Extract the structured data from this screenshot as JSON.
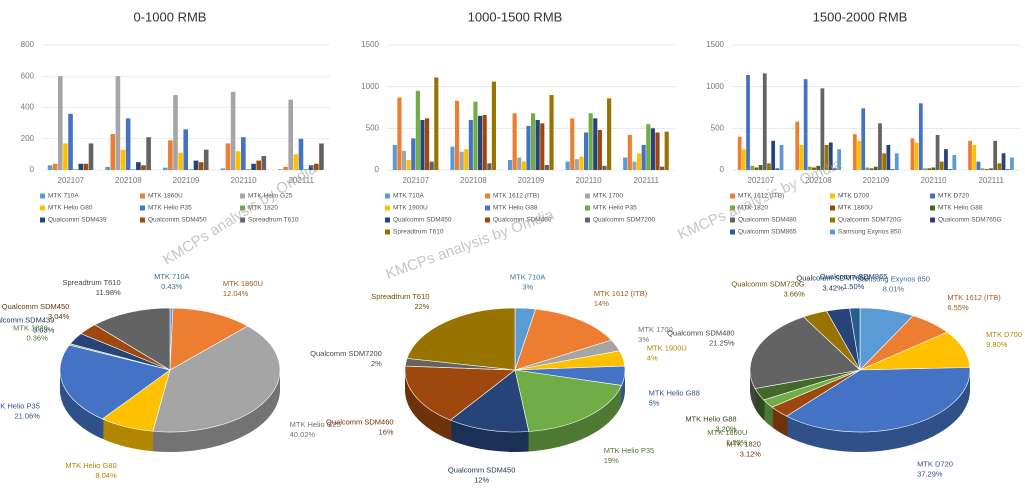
{
  "chart_data": [
    {
      "type": "bar",
      "title": "0-1000 RMB",
      "categories": [
        "202107",
        "202108",
        "202109",
        "202110",
        "202111"
      ],
      "ylim": [
        0,
        800
      ],
      "yticks": [
        0,
        200,
        400,
        600,
        800
      ],
      "grid": true,
      "series": [
        {
          "name": "MTK 710A",
          "color": "#5b9bd5",
          "values": [
            30,
            20,
            15,
            10,
            5
          ]
        },
        {
          "name": "MTK 1860U",
          "color": "#ed7d31",
          "values": [
            40,
            230,
            190,
            170,
            20
          ]
        },
        {
          "name": "MTK Helio G25",
          "color": "#a5a5a5",
          "values": [
            600,
            600,
            480,
            500,
            450
          ]
        },
        {
          "name": "MTK Helio G80",
          "color": "#ffc000",
          "values": [
            170,
            130,
            110,
            120,
            100
          ]
        },
        {
          "name": "MTK Helio P35",
          "color": "#4472c4",
          "values": [
            360,
            330,
            260,
            210,
            200
          ]
        },
        {
          "name": "MTK 1820",
          "color": "#70ad47",
          "values": [
            5,
            5,
            5,
            5,
            5
          ]
        },
        {
          "name": "Qualcomm SDM439",
          "color": "#264478",
          "values": [
            40,
            50,
            60,
            40,
            30
          ]
        },
        {
          "name": "Qualcomm SDM450",
          "color": "#9e480e",
          "values": [
            40,
            30,
            50,
            60,
            40
          ]
        },
        {
          "name": "Spreadtrum T610",
          "color": "#636363",
          "values": [
            170,
            210,
            130,
            90,
            170
          ]
        }
      ]
    },
    {
      "type": "bar",
      "title": "1000-1500 RMB",
      "categories": [
        "202107",
        "202108",
        "202109",
        "202110",
        "202111"
      ],
      "ylim": [
        0,
        1500
      ],
      "yticks": [
        0,
        500,
        1000,
        1500
      ],
      "grid": true,
      "series": [
        {
          "name": "MTK 710A",
          "color": "#5b9bd5",
          "values": [
            300,
            280,
            120,
            100,
            150
          ]
        },
        {
          "name": "MTK 1612 (ITB)",
          "color": "#ed7d31",
          "values": [
            870,
            830,
            680,
            620,
            420
          ]
        },
        {
          "name": "MTK 1700",
          "color": "#a5a5a5",
          "values": [
            230,
            220,
            150,
            130,
            100
          ]
        },
        {
          "name": "MTK 1900U",
          "color": "#ffc000",
          "values": [
            120,
            250,
            100,
            160,
            200
          ]
        },
        {
          "name": "MTK Helio G88",
          "color": "#4472c4",
          "values": [
            380,
            600,
            530,
            450,
            300
          ]
        },
        {
          "name": "MTK Helio P35",
          "color": "#70ad47",
          "values": [
            950,
            820,
            680,
            680,
            550
          ]
        },
        {
          "name": "Qualcomm SDM450",
          "color": "#264478",
          "values": [
            600,
            650,
            600,
            620,
            500
          ]
        },
        {
          "name": "Qualcomm SDM460",
          "color": "#9e480e",
          "values": [
            620,
            660,
            560,
            480,
            450
          ]
        },
        {
          "name": "Qualcomm SDM7200",
          "color": "#636363",
          "values": [
            100,
            80,
            60,
            50,
            40
          ]
        },
        {
          "name": "Spreadtrum T610",
          "color": "#997300",
          "values": [
            1110,
            1060,
            900,
            860,
            460
          ]
        }
      ]
    },
    {
      "type": "bar",
      "title": "1500-2000 RMB",
      "categories": [
        "202107",
        "202108",
        "202109",
        "202110",
        "202111"
      ],
      "ylim": [
        0,
        1500
      ],
      "yticks": [
        0,
        500,
        1000,
        1500
      ],
      "grid": true,
      "series": [
        {
          "name": "MTK 1612 (ITB)",
          "color": "#ed7d31",
          "values": [
            400,
            580,
            430,
            380,
            350
          ]
        },
        {
          "name": "MTK D700",
          "color": "#ffc000",
          "values": [
            250,
            300,
            350,
            330,
            300
          ]
        },
        {
          "name": "MTK D720",
          "color": "#4472c4",
          "values": [
            1140,
            1090,
            740,
            800,
            100
          ]
        },
        {
          "name": "MTK 1820",
          "color": "#70ad47",
          "values": [
            50,
            40,
            30,
            20,
            20
          ]
        },
        {
          "name": "MTK 1860U",
          "color": "#9e480e",
          "values": [
            30,
            30,
            20,
            20,
            10
          ]
        },
        {
          "name": "MTK Helio G88",
          "color": "#43682b",
          "values": [
            60,
            50,
            40,
            30,
            20
          ]
        },
        {
          "name": "Qualcomm SDM480",
          "color": "#636363",
          "values": [
            1160,
            980,
            560,
            420,
            350
          ]
        },
        {
          "name": "Qualcomm SDM720G",
          "color": "#997300",
          "values": [
            80,
            300,
            200,
            100,
            80
          ]
        },
        {
          "name": "Qualcomm SDM765G",
          "color": "#264478",
          "values": [
            350,
            330,
            300,
            250,
            200
          ]
        },
        {
          "name": "Qualcomm SDM865",
          "color": "#255e91",
          "values": [
            20,
            20,
            10,
            10,
            10
          ]
        },
        {
          "name": "Samsung Exynos 850",
          "color": "#5b9bd5",
          "values": [
            300,
            250,
            200,
            180,
            150
          ]
        }
      ]
    },
    {
      "type": "pie",
      "categories": [
        "MTK 710A",
        "MTK 1860U",
        "MTK Helio G25",
        "MTK Helio G80",
        "MTK Helio P35",
        "MTK 1820",
        "Qualcomm SDM439",
        "Qualcomm SDM450",
        "Spreadtrum T610"
      ],
      "values": [
        0.43,
        12.04,
        40.02,
        8.04,
        21.06,
        0.36,
        3.03,
        3.04,
        11.98
      ],
      "value_labels": [
        "0.43%",
        "12.04%",
        "40.02%",
        "8.04%",
        "21.06%",
        "0.36%",
        "3.03%",
        "3.04%",
        "11.98%"
      ],
      "colors": [
        "#5b9bd5",
        "#ed7d31",
        "#a5a5a5",
        "#ffc000",
        "#4472c4",
        "#70ad47",
        "#264478",
        "#9e480e",
        "#636363"
      ]
    },
    {
      "type": "pie",
      "categories": [
        "MTK 710A",
        "MTK 1612 (ITB)",
        "MTK 1700",
        "MTK 1900U",
        "MTK Helio G88",
        "MTK Helio P35",
        "Qualcomm SDM450",
        "Qualcomm SDM460",
        "Qualcomm SDM7200",
        "Spreadtrum T610"
      ],
      "values": [
        3,
        14,
        3,
        4,
        5,
        19,
        12,
        16,
        2,
        22
      ],
      "value_labels": [
        "3%",
        "14%",
        "3%",
        "4%",
        "5%",
        "19%",
        "12%",
        "16%",
        "2%",
        "22%"
      ],
      "colors": [
        "#5b9bd5",
        "#ed7d31",
        "#a5a5a5",
        "#ffc000",
        "#4472c4",
        "#70ad47",
        "#264478",
        "#9e480e",
        "#636363",
        "#997300"
      ]
    },
    {
      "type": "pie",
      "categories": [
        "Samsung Exynos 850",
        "MTK 1612 (ITB)",
        "MTK D700",
        "MTK D720",
        "MTK 1820",
        "MTK 1860U",
        "MTK Helio G88",
        "Qualcomm SDM480",
        "Qualcomm SDM720G",
        "Qualcomm SDM765G",
        "Qualcomm SDM865"
      ],
      "values": [
        8.01,
        6.55,
        9.8,
        37.29,
        3.12,
        2.2,
        3.2,
        21.25,
        3.66,
        3.42,
        1.5
      ],
      "value_labels": [
        "8.01%",
        "6.55%",
        "9.80%",
        "37.29%",
        "3.12%",
        "2.20%",
        "3.20%",
        "21.25%",
        "3.66%",
        "3.42%",
        "1.50%"
      ],
      "colors": [
        "#5b9bd5",
        "#ed7d31",
        "#ffc000",
        "#4472c4",
        "#9e480e",
        "#70ad47",
        "#43682b",
        "#636363",
        "#997300",
        "#264478",
        "#255e91"
      ]
    }
  ],
  "watermarks": [
    "KMCPs analysis by Omdia",
    "KMCPs analysis by Omdia",
    "KMCPs analysis by Omdia"
  ]
}
